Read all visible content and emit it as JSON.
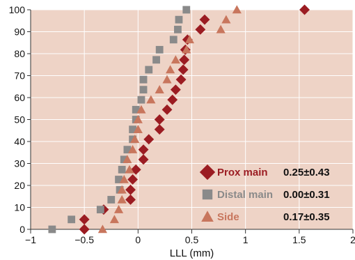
{
  "chart_data": {
    "type": "scatter",
    "title": "",
    "xlabel": "LLL (mm)",
    "ylabel": "",
    "xlim": [
      -1,
      2
    ],
    "ylim": [
      0,
      100
    ],
    "xticks": [
      "-1",
      "-0.5",
      "0",
      "0.5",
      "1",
      "1.5",
      "2"
    ],
    "yticks": [
      "0",
      "10",
      "20",
      "30",
      "40",
      "50",
      "60",
      "70",
      "80",
      "90",
      "100"
    ],
    "grid": true,
    "legend_position": "bottom-right",
    "colors": {
      "background": "#eed3c6",
      "grid": "#ffffff",
      "axis": "#333333"
    },
    "series": [
      {
        "name": "Prox main",
        "stat": "0.25±0.43",
        "marker": "diamond",
        "color": "#9b1c22",
        "points": [
          [
            -0.5,
            0
          ],
          [
            -0.5,
            4.5
          ],
          [
            -0.32,
            9
          ],
          [
            -0.07,
            13.5
          ],
          [
            -0.07,
            18
          ],
          [
            -0.05,
            22.7
          ],
          [
            -0.02,
            27.2
          ],
          [
            0.05,
            31.8
          ],
          [
            0.05,
            36.3
          ],
          [
            0.1,
            41
          ],
          [
            0.2,
            45.5
          ],
          [
            0.2,
            50
          ],
          [
            0.27,
            54.5
          ],
          [
            0.32,
            59
          ],
          [
            0.35,
            63.6
          ],
          [
            0.4,
            68.2
          ],
          [
            0.42,
            72.7
          ],
          [
            0.43,
            77.2
          ],
          [
            0.44,
            81.8
          ],
          [
            0.46,
            86.4
          ],
          [
            0.58,
            91
          ],
          [
            0.62,
            95.5
          ],
          [
            1.55,
            100
          ]
        ]
      },
      {
        "name": "Distal main",
        "stat": "0.00±0.31",
        "marker": "square",
        "color": "#8a8a8a",
        "points": [
          [
            -0.8,
            0
          ],
          [
            -0.62,
            4.5
          ],
          [
            -0.35,
            9
          ],
          [
            -0.25,
            13.5
          ],
          [
            -0.17,
            18
          ],
          [
            -0.18,
            22.7
          ],
          [
            -0.15,
            27.2
          ],
          [
            -0.13,
            31.8
          ],
          [
            -0.1,
            36.3
          ],
          [
            -0.05,
            41
          ],
          [
            -0.05,
            45.5
          ],
          [
            -0.02,
            50
          ],
          [
            -0.02,
            54.5
          ],
          [
            0.03,
            59
          ],
          [
            0.05,
            63.6
          ],
          [
            0.05,
            68.2
          ],
          [
            0.1,
            72.7
          ],
          [
            0.17,
            77.2
          ],
          [
            0.2,
            81.8
          ],
          [
            0.33,
            86.4
          ],
          [
            0.37,
            91
          ],
          [
            0.38,
            95.5
          ],
          [
            0.45,
            100
          ]
        ]
      },
      {
        "name": "Side",
        "stat": "0.17±0.35",
        "marker": "triangle",
        "color": "#c8765d",
        "points": [
          [
            -0.33,
            0
          ],
          [
            -0.22,
            4.5
          ],
          [
            -0.18,
            9
          ],
          [
            -0.15,
            13.5
          ],
          [
            -0.15,
            18
          ],
          [
            -0.13,
            22.7
          ],
          [
            -0.08,
            27.2
          ],
          [
            -0.1,
            31.8
          ],
          [
            -0.05,
            36.3
          ],
          [
            -0.03,
            41
          ],
          [
            0.0,
            45.5
          ],
          [
            0.0,
            50
          ],
          [
            0.03,
            54.5
          ],
          [
            0.12,
            59
          ],
          [
            0.2,
            63.6
          ],
          [
            0.27,
            68.2
          ],
          [
            0.3,
            72.7
          ],
          [
            0.35,
            77.2
          ],
          [
            0.45,
            81.8
          ],
          [
            0.48,
            86.4
          ],
          [
            0.77,
            91
          ],
          [
            0.82,
            95.5
          ],
          [
            0.92,
            100
          ]
        ]
      }
    ]
  }
}
